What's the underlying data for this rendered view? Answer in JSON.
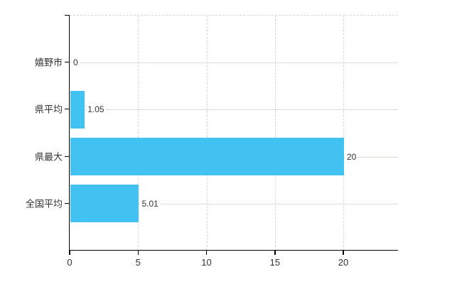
{
  "chart_data": {
    "type": "bar",
    "orientation": "horizontal",
    "title": "",
    "categories": [
      "嬉野市",
      "県平均",
      "県最大",
      "全国平均"
    ],
    "values": [
      0,
      1.05,
      20,
      5.01
    ],
    "value_labels": [
      "0",
      "1.05",
      "20",
      "5.01"
    ],
    "x_ticks": [
      0,
      5,
      10,
      15,
      20
    ],
    "x_tick_labels": [
      "0",
      "5",
      "10",
      "15",
      "20"
    ],
    "xlim": [
      0,
      24
    ],
    "grid": "on",
    "legend": "none",
    "colors": {
      "bar": "#41c2f1",
      "h_gridline": "#d7e0d7",
      "v_gridline": "#dbd8de",
      "top_border": "#dbd8de",
      "axis": "#000000",
      "text": "#333333"
    }
  }
}
